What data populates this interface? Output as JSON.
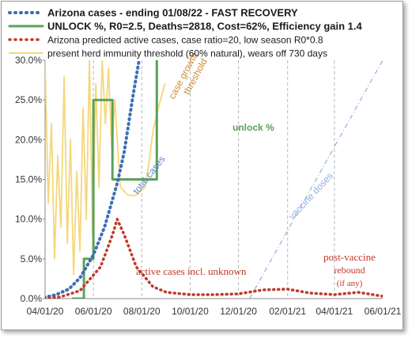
{
  "chart_data": {
    "type": "line",
    "title": "",
    "xlabel": "",
    "ylabel": "",
    "ylim": [
      0,
      30
    ],
    "y_ticks": [
      "0.0%",
      "5.0%",
      "10.0%",
      "15.0%",
      "20.0%",
      "25.0%",
      "30.0%"
    ],
    "x_ticks": [
      "04/01/20",
      "06/01/20",
      "08/01/20",
      "10/01/20",
      "12/01/20",
      "02/01/21",
      "04/01/21",
      "06/01/21"
    ],
    "grid": "vertical dashed",
    "legend_placement": "top",
    "legend": [
      {
        "label": "Arizona cases - ending 01/08/22 - FAST RECOVERY",
        "color": "#3b6fb6",
        "style": "dotted"
      },
      {
        "label": "UNLOCK %, R0=2.5,  Deaths=2818, Cost=62%, Efficiency gain 1.4",
        "color": "#5aa15a",
        "style": "solid"
      },
      {
        "label": "Arizona predicted active cases, case ratio=20, low season R0*0.8",
        "color": "#c0392b",
        "style": "dotted"
      },
      {
        "label": "present herd immunity threshold (60% natural), wears off 730 days",
        "color": "#f5d77a",
        "style": "solid"
      }
    ],
    "annotations": [
      {
        "text": "case growth threshold",
        "color": "#d08a2c"
      },
      {
        "text": "unlock %",
        "color": "#5aa15a"
      },
      {
        "text": "total cases",
        "color": "#5b86c4"
      },
      {
        "text": "vaccine doses",
        "color": "#8fb1da"
      },
      {
        "text": "active cases incl. unknown",
        "color": "#c0392b"
      },
      {
        "text": "post-vaccine rebound (if any)",
        "color": "#c0392b"
      }
    ],
    "series": [
      {
        "name": "Arizona cases - ending 01/08/22 - FAST RECOVERY",
        "color": "#3b6fb6",
        "x": [
          "03/25/20",
          "04/15/20",
          "05/01/20",
          "05/15/20",
          "06/01/20",
          "06/15/20",
          "07/01/20",
          "07/10/20",
          "07/20/20",
          "08/01/20"
        ],
        "y": [
          0,
          0.5,
          1.2,
          2.6,
          5.5,
          9,
          14.5,
          18.5,
          25,
          32
        ]
      },
      {
        "name": "UNLOCK %, R0=2.5,  Deaths=2818, Cost=62%, Efficiency gain 1.4",
        "color": "#5aa15a",
        "x": [
          "05/05/20",
          "05/20/20",
          "05/20/20",
          "06/01/20",
          "06/01/20",
          "06/25/20",
          "06/25/20",
          "07/05/20",
          "07/05/20",
          "08/10/20",
          "08/10/20",
          "08/20/20",
          "08/20/20"
        ],
        "y": [
          0,
          0,
          5,
          5,
          25,
          25,
          15,
          15,
          15,
          15,
          15,
          15,
          30
        ]
      },
      {
        "name": "Arizona predicted active cases, case ratio=20, low season R0*0.8",
        "color": "#c0392b",
        "x": [
          "03/25/20",
          "04/20/20",
          "05/15/20",
          "06/10/20",
          "06/25/20",
          "07/01/20",
          "07/10/20",
          "07/25/20",
          "08/15/20",
          "09/01/20",
          "10/01/20",
          "11/01/20",
          "12/01/20",
          "01/01/21",
          "02/01/21",
          "03/01/21",
          "04/01/21",
          "05/01/21",
          "06/01/21"
        ],
        "y": [
          0,
          0.2,
          1,
          4,
          8,
          10,
          8,
          4,
          1.5,
          0.8,
          0.5,
          0.5,
          0.6,
          1.1,
          1.2,
          0.7,
          0.5,
          0.8,
          0.3
        ]
      },
      {
        "name": "present herd immunity threshold (60% natural), wears off 730 days",
        "color": "#f5d77a",
        "x": [
          "04/01/20",
          "04/05/20",
          "04/09/20",
          "04/13/20",
          "04/17/20",
          "04/21/20",
          "04/25/20",
          "04/29/20",
          "05/03/20",
          "05/07/20",
          "05/11/20",
          "05/15/20",
          "05/19/20",
          "05/23/20",
          "05/27/20",
          "05/31/20",
          "06/04/20",
          "06/08/20",
          "06/12/20",
          "06/16/20",
          "06/20/20",
          "06/24/20",
          "06/28/20",
          "07/05/20",
          "07/15/20",
          "07/25/20",
          "08/05/20",
          "08/10/20",
          "08/15/20",
          "08/22/20",
          "08/30/20"
        ],
        "y": [
          30,
          12,
          22,
          5,
          18,
          9,
          28,
          7,
          20,
          3,
          16,
          6,
          24,
          10,
          30,
          8,
          27,
          14,
          30,
          22,
          29,
          19,
          25,
          14,
          13,
          13,
          14,
          17,
          21,
          24,
          27
        ]
      },
      {
        "name": "vaccine doses",
        "color": "#8fb1da",
        "x": [
          "12/15/20",
          "06/01/21"
        ],
        "y": [
          0,
          30
        ]
      }
    ]
  }
}
